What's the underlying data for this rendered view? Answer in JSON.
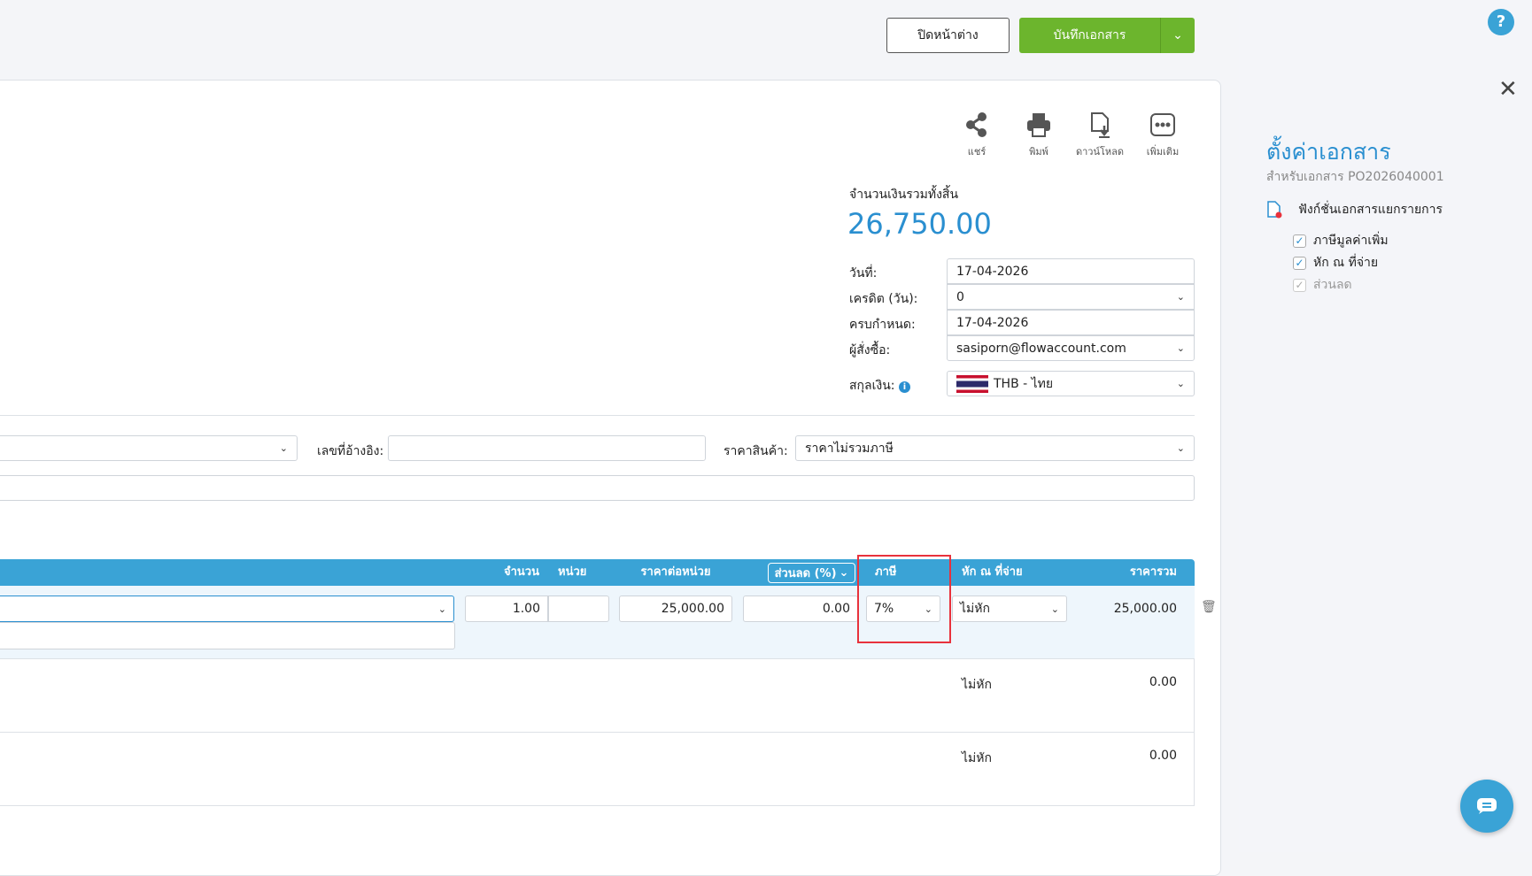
{
  "header": {
    "close_label": "ปิดหน้าต่าง",
    "save_label": "บันทึกเอกสาร"
  },
  "toolbar": {
    "share": "แชร์",
    "print": "พิมพ์",
    "download": "ดาวน์โหลด",
    "more": "เพิ่มเติม"
  },
  "summary": {
    "total_label": "จำนวนเงินรวมทั้งสิ้น",
    "total_value": "26,750.00"
  },
  "form": {
    "date_label": "วันที่:",
    "date_value": "17-04-2026",
    "credit_label": "เครดิต (วัน):",
    "credit_value": "0",
    "due_label": "ครบกำหนด:",
    "due_value": "17-04-2026",
    "buyer_label": "ผู้สั่งซื้อ:",
    "buyer_value": "sasiporn@flowaccount.com",
    "currency_label": "สกุลเงิน:",
    "currency_value": "THB - ไทย",
    "ref_label": "เลขที่อ้างอิง:",
    "ref_value": "",
    "price_label": "ราคาสินค้า:",
    "price_value": "ราคาไม่รวมภาษี"
  },
  "table": {
    "headers": {
      "qty": "จำนวน",
      "unit": "หน่วย",
      "unit_price": "ราคาต่อหน่วย",
      "discount": "ส่วนลด (%)",
      "tax": "ภาษี",
      "wht": "หัก ณ ที่จ่าย",
      "total": "ราคารวม"
    },
    "rows": [
      {
        "qty": "1.00",
        "unit": "",
        "unit_price": "25,000.00",
        "discount": "0.00",
        "tax": "7%",
        "wht": "ไม่หัก",
        "total": "25,000.00"
      },
      {
        "wht": "ไม่หัก",
        "total": "0.00"
      },
      {
        "wht": "ไม่หัก",
        "total": "0.00"
      }
    ]
  },
  "panel": {
    "title": "ตั้งค่าเอกสาร",
    "subtitle": "สำหรับเอกสาร PO2026040001",
    "function_label": "ฟังก์ชั่นเอกสารแยกรายการ",
    "options": [
      {
        "label": "ภาษีมูลค่าเพิ่ม",
        "checked": true
      },
      {
        "label": "หัก ณ ที่จ่าย",
        "checked": true
      },
      {
        "label": "ส่วนลด",
        "checked": true,
        "disabled": true
      }
    ]
  },
  "colors": {
    "accent": "#2a8fd0",
    "header_blue": "#3aa3d6",
    "save_green": "#6cb52d",
    "highlight_red": "#e8323c"
  }
}
